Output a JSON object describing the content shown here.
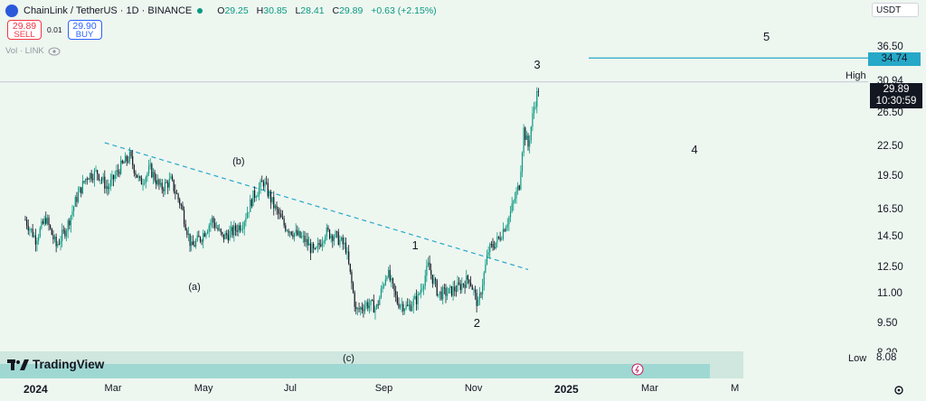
{
  "header": {
    "symbol": "ChainLink / TetherUS · 1D · BINANCE",
    "ohlc": {
      "o_label": "O",
      "o": "29.25",
      "h_label": "H",
      "h": "30.85",
      "l_label": "L",
      "l": "28.41",
      "c_label": "C",
      "c": "29.89",
      "change": "+0.63 (+2.15%)"
    },
    "sell": {
      "price": "29.89",
      "label": "SELL"
    },
    "buy": {
      "price": "29.90",
      "label": "BUY"
    },
    "spread": "0.01",
    "vol_label": "Vol · LINK",
    "currency": "USDT"
  },
  "colors": {
    "up": "#089981",
    "down": "#131722",
    "trend": "#26a8c8",
    "background": "#eef6f0"
  },
  "brand": "TradingView",
  "chart_data": {
    "type": "candlestick",
    "y_scale": "log",
    "ylim": [
      8.08,
      39.5
    ],
    "y_ticks": [
      "36.50",
      "30.94",
      "26.50",
      "22.50",
      "19.50",
      "16.50",
      "14.50",
      "12.50",
      "11.00",
      "9.50",
      "8.20"
    ],
    "x_ticks": [
      {
        "label": "2024",
        "date": "2024-01-01",
        "bold": true
      },
      {
        "label": "Mar",
        "date": "2024-03-01"
      },
      {
        "label": "May",
        "date": "2024-05-01"
      },
      {
        "label": "Jul",
        "date": "2024-07-01"
      },
      {
        "label": "Sep",
        "date": "2024-09-01"
      },
      {
        "label": "Nov",
        "date": "2024-11-01"
      },
      {
        "label": "2025",
        "date": "2025-01-01",
        "bold": true
      },
      {
        "label": "Mar",
        "date": "2025-03-01"
      },
      {
        "label": "M",
        "date": "2025-05-01"
      }
    ],
    "high": {
      "label": "High",
      "value": "30.94"
    },
    "low": {
      "label": "Low",
      "value": "8.08"
    },
    "last_price": {
      "value": "29.89",
      "countdown": "10:30:59"
    },
    "level_line": {
      "value": "34.74"
    },
    "trendline": {
      "from": {
        "date": "2024-02-24",
        "price": 23.0
      },
      "to": {
        "date": "2024-12-08",
        "price": 12.4
      }
    },
    "wave_labels": [
      {
        "text": "(a)",
        "date": "2024-04-24",
        "price": 11.3
      },
      {
        "text": "(b)",
        "date": "2024-05-24",
        "price": 20.8
      },
      {
        "text": "(c)",
        "date": "2024-08-07",
        "price": 7.95
      },
      {
        "text": "1",
        "date": "2024-09-23",
        "price": 13.9
      },
      {
        "text": "2",
        "date": "2024-11-04",
        "price": 9.55
      },
      {
        "text": "3",
        "date": "2024-12-15",
        "price": 33.5
      },
      {
        "text": "4",
        "date": "2025-04-01",
        "price": 22.2
      },
      {
        "text": "5",
        "date": "2025-05-20",
        "price": 38.5
      }
    ],
    "series": [
      {
        "d": "2024-01-01",
        "p": 15.8
      },
      {
        "d": "2024-01-08",
        "p": 14.4
      },
      {
        "d": "2024-01-15",
        "p": 15.9
      },
      {
        "d": "2024-01-22",
        "p": 13.9
      },
      {
        "d": "2024-01-29",
        "p": 15.2
      },
      {
        "d": "2024-02-05",
        "p": 17.6
      },
      {
        "d": "2024-02-12",
        "p": 19.6
      },
      {
        "d": "2024-02-19",
        "p": 19.9
      },
      {
        "d": "2024-02-26",
        "p": 18.4
      },
      {
        "d": "2024-03-05",
        "p": 20.3
      },
      {
        "d": "2024-03-12",
        "p": 21.5
      },
      {
        "d": "2024-03-19",
        "p": 18.9
      },
      {
        "d": "2024-03-26",
        "p": 20.2
      },
      {
        "d": "2024-04-02",
        "p": 18.4
      },
      {
        "d": "2024-04-09",
        "p": 19.1
      },
      {
        "d": "2024-04-16",
        "p": 16.9
      },
      {
        "d": "2024-04-23",
        "p": 13.8
      },
      {
        "d": "2024-04-30",
        "p": 14.6
      },
      {
        "d": "2024-05-07",
        "p": 15.8
      },
      {
        "d": "2024-05-14",
        "p": 14.5
      },
      {
        "d": "2024-05-21",
        "p": 14.9
      },
      {
        "d": "2024-05-28",
        "p": 15.6
      },
      {
        "d": "2024-06-04",
        "p": 17.7
      },
      {
        "d": "2024-06-11",
        "p": 19.0
      },
      {
        "d": "2024-06-18",
        "p": 16.9
      },
      {
        "d": "2024-06-25",
        "p": 15.4
      },
      {
        "d": "2024-07-02",
        "p": 14.8
      },
      {
        "d": "2024-07-09",
        "p": 14.3
      },
      {
        "d": "2024-07-16",
        "p": 13.4
      },
      {
        "d": "2024-07-23",
        "p": 14.9
      },
      {
        "d": "2024-07-30",
        "p": 14.6
      },
      {
        "d": "2024-08-06",
        "p": 13.8
      },
      {
        "d": "2024-08-13",
        "p": 10.1
      },
      {
        "d": "2024-08-20",
        "p": 10.5
      },
      {
        "d": "2024-08-27",
        "p": 10.3
      },
      {
        "d": "2024-09-03",
        "p": 12.3
      },
      {
        "d": "2024-09-10",
        "p": 10.6
      },
      {
        "d": "2024-09-17",
        "p": 10.3
      },
      {
        "d": "2024-09-24",
        "p": 10.8
      },
      {
        "d": "2024-10-01",
        "p": 12.6
      },
      {
        "d": "2024-10-08",
        "p": 11.0
      },
      {
        "d": "2024-10-15",
        "p": 11.1
      },
      {
        "d": "2024-10-22",
        "p": 11.4
      },
      {
        "d": "2024-10-29",
        "p": 11.9
      },
      {
        "d": "2024-11-04",
        "p": 10.4
      },
      {
        "d": "2024-11-11",
        "p": 13.6
      },
      {
        "d": "2024-11-18",
        "p": 14.4
      },
      {
        "d": "2024-11-25",
        "p": 16.0
      },
      {
        "d": "2024-12-02",
        "p": 18.8
      },
      {
        "d": "2024-12-05",
        "p": 24.5
      },
      {
        "d": "2024-12-08",
        "p": 22.6
      },
      {
        "d": "2024-12-12",
        "p": 27.4
      },
      {
        "d": "2024-12-15",
        "p": 29.89
      }
    ]
  }
}
